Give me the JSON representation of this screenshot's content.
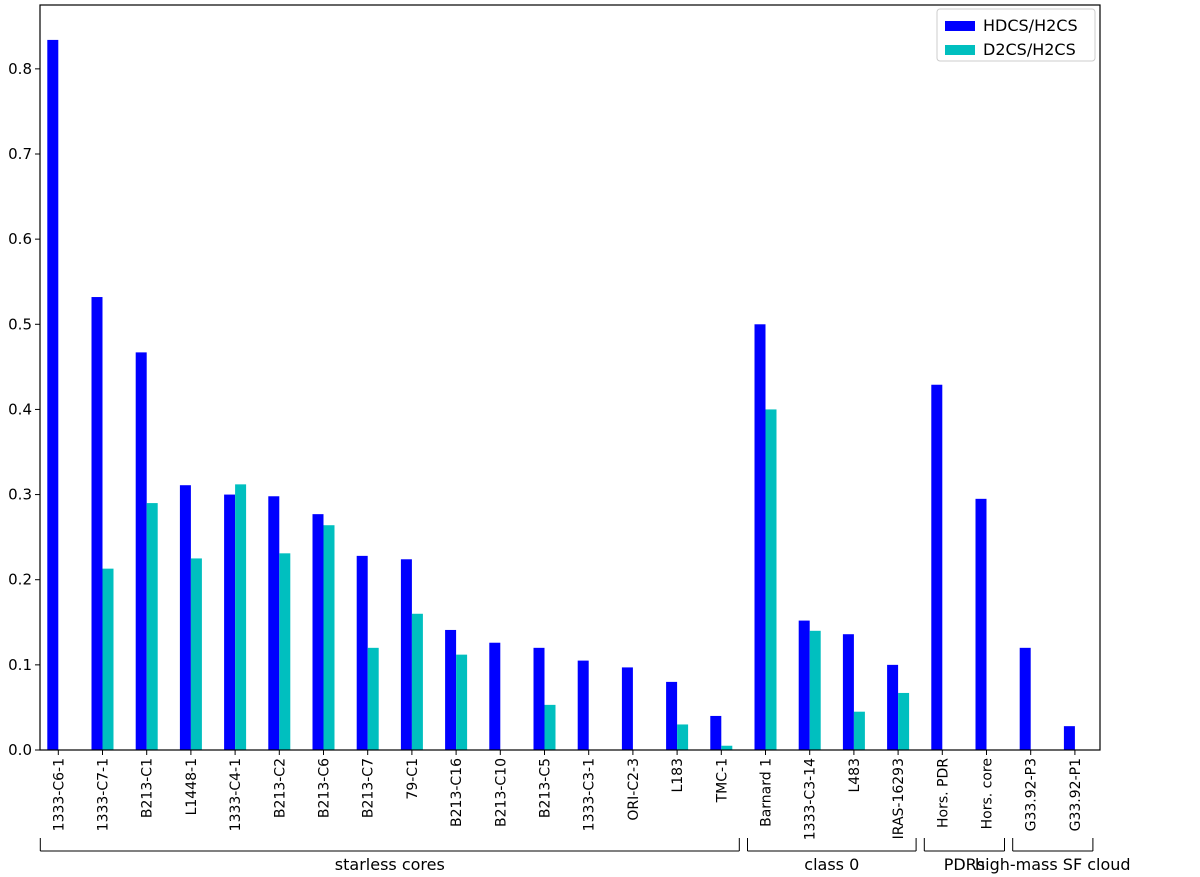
{
  "chart_data": {
    "type": "bar",
    "ylim": [
      0,
      0.875
    ],
    "yticks": [
      0.0,
      0.1,
      0.2,
      0.3,
      0.4,
      0.5,
      0.6,
      0.7,
      0.8
    ],
    "grid": false,
    "legend_position": "top-right",
    "categories": [
      "1333-C6-1",
      "1333-C7-1",
      "B213-C1",
      "L1448-1",
      "1333-C4-1",
      "B213-C2",
      "B213-C6",
      "B213-C7",
      "79-C1",
      "B213-C16",
      "B213-C10",
      "B213-C5",
      "1333-C3-1",
      "ORI-C2-3",
      "L183",
      "TMC-1",
      "Barnard 1",
      "1333-C3-14",
      "L483",
      "IRAS-16293",
      "Hors. PDR",
      "Hors. core",
      "G33.92-P3",
      "G33.92-P1"
    ],
    "series": [
      {
        "name": "HDCS/H2CS",
        "color": "#0000ff",
        "values": [
          0.834,
          0.532,
          0.467,
          0.311,
          0.3,
          0.298,
          0.277,
          0.228,
          0.224,
          0.141,
          0.126,
          0.12,
          0.105,
          0.097,
          0.08,
          0.04,
          0.5,
          0.152,
          0.136,
          0.1,
          0.429,
          0.295,
          0.12,
          0.028
        ]
      },
      {
        "name": "D2CS/H2CS",
        "color": "#00bfbf",
        "values": [
          null,
          0.213,
          0.29,
          0.225,
          0.312,
          0.231,
          0.264,
          0.12,
          0.16,
          0.112,
          null,
          0.053,
          null,
          null,
          0.03,
          0.005,
          0.4,
          0.14,
          0.045,
          0.067,
          null,
          null,
          null,
          null
        ]
      }
    ],
    "groups": [
      {
        "label": "starless cores",
        "first": 0,
        "last": 15
      },
      {
        "label": "class 0",
        "first": 16,
        "last": 19
      },
      {
        "label": "PDRs",
        "first": 20,
        "last": 21
      },
      {
        "label": "high-mass SF cloud",
        "first": 22,
        "last": 23
      }
    ]
  }
}
